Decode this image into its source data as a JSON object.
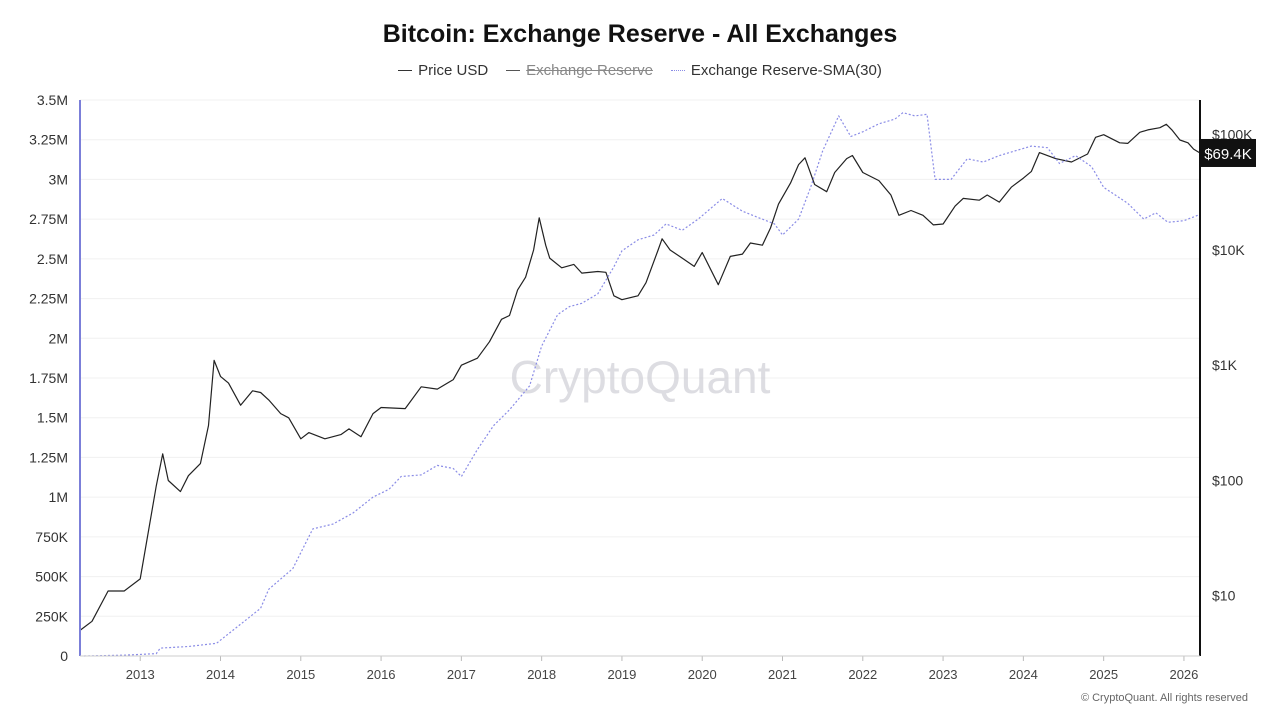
{
  "chart_data": {
    "type": "line",
    "title": "Bitcoin: Exchange Reserve - All Exchanges",
    "legend": [
      {
        "label": "Price USD",
        "style": "solid",
        "color": "#333333",
        "enabled": true
      },
      {
        "label": "Exchange Reserve",
        "style": "solid",
        "color": "#555555",
        "enabled": false
      },
      {
        "label": "Exchange Reserve-SMA(30)",
        "style": "dotted",
        "color": "#8a8ce6",
        "enabled": true
      }
    ],
    "legend_placement": "top-center",
    "grid": true,
    "x_ticks": [
      "2013",
      "2014",
      "2015",
      "2016",
      "2017",
      "2018",
      "2019",
      "2020",
      "2021",
      "2022",
      "2023",
      "2024",
      "2025",
      "2026"
    ],
    "y_left_ticks": [
      "0",
      "250K",
      "500K",
      "750K",
      "1M",
      "1.25M",
      "1.5M",
      "1.75M",
      "2M",
      "2.25M",
      "2.5M",
      "2.75M",
      "3M",
      "3.25M",
      "3.5M"
    ],
    "y_left_range": [
      0,
      3500000
    ],
    "y_right_ticks": [
      "$10",
      "$100",
      "$1K",
      "$10K",
      "$100K"
    ],
    "y_right_scale": "log",
    "y_right_range": [
      3,
      200000
    ],
    "x_range": [
      2012.25,
      2026.2
    ],
    "current_price_label": "$69.4K",
    "series": [
      {
        "name": "Price USD",
        "axis": "right",
        "color": "#222222",
        "points": [
          [
            2012.25,
            5
          ],
          [
            2012.4,
            6
          ],
          [
            2012.6,
            11
          ],
          [
            2012.8,
            11
          ],
          [
            2013.0,
            14
          ],
          [
            2013.2,
            90
          ],
          [
            2013.28,
            170
          ],
          [
            2013.35,
            100
          ],
          [
            2013.5,
            80
          ],
          [
            2013.6,
            110
          ],
          [
            2013.75,
            140
          ],
          [
            2013.85,
            300
          ],
          [
            2013.92,
            1100
          ],
          [
            2014.0,
            800
          ],
          [
            2014.1,
            700
          ],
          [
            2014.25,
            450
          ],
          [
            2014.4,
            600
          ],
          [
            2014.5,
            580
          ],
          [
            2014.6,
            500
          ],
          [
            2014.75,
            380
          ],
          [
            2014.85,
            350
          ],
          [
            2015.0,
            230
          ],
          [
            2015.1,
            260
          ],
          [
            2015.3,
            230
          ],
          [
            2015.5,
            250
          ],
          [
            2015.6,
            280
          ],
          [
            2015.75,
            240
          ],
          [
            2015.9,
            380
          ],
          [
            2016.0,
            430
          ],
          [
            2016.3,
            420
          ],
          [
            2016.5,
            650
          ],
          [
            2016.7,
            620
          ],
          [
            2016.9,
            750
          ],
          [
            2017.0,
            1000
          ],
          [
            2017.2,
            1150
          ],
          [
            2017.35,
            1600
          ],
          [
            2017.5,
            2500
          ],
          [
            2017.6,
            2700
          ],
          [
            2017.7,
            4500
          ],
          [
            2017.8,
            5800
          ],
          [
            2017.9,
            10000
          ],
          [
            2017.97,
            19000
          ],
          [
            2018.05,
            11000
          ],
          [
            2018.1,
            8500
          ],
          [
            2018.25,
            7000
          ],
          [
            2018.4,
            7500
          ],
          [
            2018.5,
            6300
          ],
          [
            2018.7,
            6500
          ],
          [
            2018.8,
            6400
          ],
          [
            2018.9,
            4000
          ],
          [
            2019.0,
            3700
          ],
          [
            2019.2,
            4000
          ],
          [
            2019.3,
            5200
          ],
          [
            2019.45,
            10000
          ],
          [
            2019.5,
            12500
          ],
          [
            2019.6,
            10000
          ],
          [
            2019.75,
            8500
          ],
          [
            2019.9,
            7200
          ],
          [
            2020.0,
            9500
          ],
          [
            2020.2,
            5000
          ],
          [
            2020.35,
            8800
          ],
          [
            2020.5,
            9200
          ],
          [
            2020.6,
            11500
          ],
          [
            2020.75,
            11000
          ],
          [
            2020.85,
            15500
          ],
          [
            2020.95,
            25000
          ],
          [
            2021.1,
            38000
          ],
          [
            2021.2,
            55000
          ],
          [
            2021.28,
            63000
          ],
          [
            2021.4,
            37000
          ],
          [
            2021.55,
            32000
          ],
          [
            2021.65,
            47000
          ],
          [
            2021.8,
            62000
          ],
          [
            2021.87,
            66000
          ],
          [
            2022.0,
            47000
          ],
          [
            2022.2,
            40000
          ],
          [
            2022.35,
            30000
          ],
          [
            2022.45,
            20000
          ],
          [
            2022.6,
            22000
          ],
          [
            2022.75,
            20000
          ],
          [
            2022.88,
            16500
          ],
          [
            2023.0,
            16800
          ],
          [
            2023.15,
            24000
          ],
          [
            2023.25,
            28000
          ],
          [
            2023.45,
            27000
          ],
          [
            2023.55,
            30000
          ],
          [
            2023.7,
            26000
          ],
          [
            2023.85,
            35000
          ],
          [
            2024.0,
            42000
          ],
          [
            2024.1,
            48000
          ],
          [
            2024.2,
            70000
          ],
          [
            2024.4,
            62000
          ],
          [
            2024.6,
            58000
          ],
          [
            2024.8,
            68000
          ],
          [
            2024.9,
            95000
          ],
          [
            2025.0,
            100000
          ],
          [
            2025.2,
            85000
          ],
          [
            2025.3,
            84000
          ],
          [
            2025.45,
            105000
          ],
          [
            2025.55,
            110000
          ],
          [
            2025.7,
            115000
          ],
          [
            2025.78,
            123000
          ],
          [
            2025.85,
            110000
          ],
          [
            2025.95,
            90000
          ],
          [
            2026.05,
            85000
          ],
          [
            2026.12,
            75000
          ],
          [
            2026.2,
            69400
          ]
        ]
      },
      {
        "name": "Exchange Reserve-SMA(30)",
        "axis": "left",
        "color": "#8a8ce6",
        "points": [
          [
            2012.3,
            0
          ],
          [
            2012.8,
            5000
          ],
          [
            2013.2,
            15000
          ],
          [
            2013.25,
            50000
          ],
          [
            2013.6,
            60000
          ],
          [
            2013.95,
            80000
          ],
          [
            2014.25,
            200000
          ],
          [
            2014.5,
            300000
          ],
          [
            2014.6,
            420000
          ],
          [
            2014.9,
            550000
          ],
          [
            2015.0,
            650000
          ],
          [
            2015.15,
            800000
          ],
          [
            2015.4,
            830000
          ],
          [
            2015.65,
            900000
          ],
          [
            2015.9,
            1000000
          ],
          [
            2016.1,
            1050000
          ],
          [
            2016.25,
            1130000
          ],
          [
            2016.5,
            1140000
          ],
          [
            2016.7,
            1200000
          ],
          [
            2016.9,
            1180000
          ],
          [
            2017.0,
            1130000
          ],
          [
            2017.2,
            1300000
          ],
          [
            2017.4,
            1450000
          ],
          [
            2017.6,
            1550000
          ],
          [
            2017.85,
            1700000
          ],
          [
            2018.0,
            1950000
          ],
          [
            2018.2,
            2150000
          ],
          [
            2018.35,
            2200000
          ],
          [
            2018.5,
            2220000
          ],
          [
            2018.7,
            2280000
          ],
          [
            2018.9,
            2450000
          ],
          [
            2019.0,
            2550000
          ],
          [
            2019.2,
            2620000
          ],
          [
            2019.4,
            2650000
          ],
          [
            2019.55,
            2720000
          ],
          [
            2019.75,
            2680000
          ],
          [
            2019.95,
            2750000
          ],
          [
            2020.25,
            2880000
          ],
          [
            2020.5,
            2800000
          ],
          [
            2020.7,
            2760000
          ],
          [
            2020.9,
            2720000
          ],
          [
            2021.0,
            2650000
          ],
          [
            2021.2,
            2750000
          ],
          [
            2021.35,
            2950000
          ],
          [
            2021.5,
            3180000
          ],
          [
            2021.7,
            3400000
          ],
          [
            2021.85,
            3270000
          ],
          [
            2022.0,
            3300000
          ],
          [
            2022.2,
            3350000
          ],
          [
            2022.4,
            3380000
          ],
          [
            2022.5,
            3420000
          ],
          [
            2022.65,
            3400000
          ],
          [
            2022.8,
            3410000
          ],
          [
            2022.9,
            3000000
          ],
          [
            2023.1,
            3000000
          ],
          [
            2023.3,
            3130000
          ],
          [
            2023.5,
            3110000
          ],
          [
            2023.7,
            3150000
          ],
          [
            2023.9,
            3180000
          ],
          [
            2024.1,
            3210000
          ],
          [
            2024.3,
            3200000
          ],
          [
            2024.45,
            3100000
          ],
          [
            2024.65,
            3150000
          ],
          [
            2024.85,
            3080000
          ],
          [
            2025.0,
            2950000
          ],
          [
            2025.15,
            2900000
          ],
          [
            2025.3,
            2850000
          ],
          [
            2025.5,
            2750000
          ],
          [
            2025.65,
            2790000
          ],
          [
            2025.8,
            2730000
          ],
          [
            2026.0,
            2740000
          ],
          [
            2026.2,
            2780000
          ]
        ]
      }
    ]
  },
  "watermark": "CryptoQuant",
  "copyright": "© CryptoQuant. All rights reserved"
}
